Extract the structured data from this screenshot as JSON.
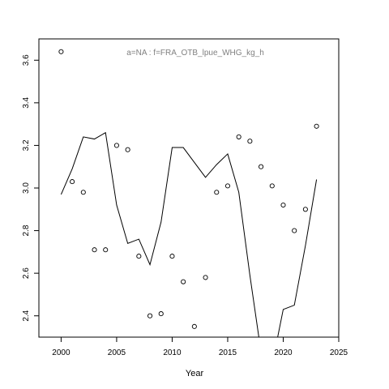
{
  "chart_data": {
    "type": "line",
    "title": "",
    "subtitle": "a=NA  :  f=FRA_OTB_lpue_WHG_kg_h",
    "xlabel": "Year",
    "ylabel": "",
    "xlim": [
      1998,
      2025
    ],
    "ylim": [
      2.3,
      3.7
    ],
    "x_ticks": [
      2000,
      2005,
      2010,
      2015,
      2020,
      2025
    ],
    "y_ticks": [
      2.4,
      2.6,
      2.8,
      3.0,
      3.2,
      3.4,
      3.6
    ],
    "grid": false,
    "legend": "none",
    "series": [
      {
        "type": "line",
        "x": [
          2000,
          2001,
          2002,
          2003,
          2004,
          2005,
          2006,
          2007,
          2008,
          2009,
          2010,
          2011,
          2012,
          2013,
          2014,
          2015,
          2016,
          2017,
          2018,
          2019,
          2020,
          2021,
          2022,
          2023
        ],
        "values": [
          2.97,
          3.09,
          3.24,
          3.23,
          3.26,
          2.92,
          2.74,
          2.76,
          2.64,
          2.84,
          3.19,
          3.19,
          3.12,
          3.05,
          3.11,
          3.16,
          2.98,
          2.59,
          2.23,
          2.17,
          2.43,
          2.45,
          2.73,
          3.04
        ]
      },
      {
        "type": "scatter",
        "x": [
          2000,
          2001,
          2002,
          2003,
          2004,
          2005,
          2006,
          2007,
          2008,
          2009,
          2010,
          2011,
          2012,
          2013,
          2014,
          2015,
          2016,
          2017,
          2018,
          2019,
          2020,
          2021,
          2022,
          2023
        ],
        "values": [
          3.64,
          3.03,
          2.98,
          2.71,
          2.71,
          3.2,
          3.18,
          2.68,
          2.4,
          2.41,
          2.68,
          2.56,
          2.35,
          2.58,
          2.98,
          3.01,
          3.24,
          3.22,
          3.1,
          3.01,
          2.92,
          2.8,
          2.9,
          3.29
        ]
      }
    ]
  }
}
